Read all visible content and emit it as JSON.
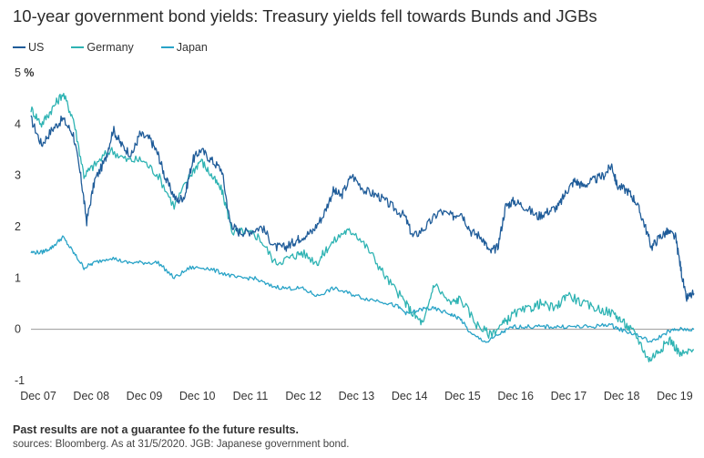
{
  "title": "10-year government bond yields: Treasury yields fell towards Bunds and JGBs",
  "footnote": "Past results are not a guarantee fo the future results.",
  "sources": "sources: Bloomberg. As at 31/5/2020. JGB: Japanese government bond.",
  "colors": {
    "US": "#1f5c99",
    "Germany": "#2eb3b3",
    "Japan": "#29a3c7"
  },
  "chart_data": {
    "type": "line",
    "title": "10-year government bond yields: Treasury yields fell towards Bunds and JGBs",
    "ylabel": "%",
    "y_unit": "%",
    "ylim": [
      -1,
      5
    ],
    "yticks": [
      5,
      4,
      3,
      2,
      1,
      0,
      -1
    ],
    "x_tick_labels": [
      "Dec 07",
      "Dec 08",
      "Dec 09",
      "Dec 10",
      "Dec 11",
      "Dec 12",
      "Dec 13",
      "Dec 14",
      "Dec 15",
      "Dec 16",
      "Dec 17",
      "Dec 18",
      "Dec 19"
    ],
    "xlim": [
      2007.9,
      2020.4
    ],
    "grid": "horizontal-zero-line",
    "legend_position": "top-left",
    "series": [
      {
        "name": "US",
        "color": "#1f5c99",
        "x": [
          2007.9,
          2008.1,
          2008.3,
          2008.5,
          2008.7,
          2008.85,
          2008.95,
          2009.1,
          2009.3,
          2009.45,
          2009.6,
          2009.8,
          2009.95,
          2010.15,
          2010.3,
          2010.45,
          2010.65,
          2010.8,
          2010.95,
          2011.1,
          2011.3,
          2011.5,
          2011.65,
          2011.8,
          2012.0,
          2012.25,
          2012.5,
          2012.7,
          2012.85,
          2013.0,
          2013.2,
          2013.4,
          2013.6,
          2013.75,
          2013.95,
          2014.2,
          2014.45,
          2014.7,
          2014.95,
          2015.1,
          2015.35,
          2015.6,
          2015.85,
          2016.0,
          2016.2,
          2016.4,
          2016.55,
          2016.7,
          2016.85,
          2017.0,
          2017.2,
          2017.45,
          2017.65,
          2017.85,
          2018.0,
          2018.15,
          2018.3,
          2018.5,
          2018.7,
          2018.85,
          2018.95,
          2019.15,
          2019.3,
          2019.45,
          2019.6,
          2019.75,
          2019.9,
          2020.05,
          2020.15,
          2020.25,
          2020.4
        ],
        "values": [
          4.1,
          3.6,
          3.9,
          4.1,
          3.8,
          2.9,
          2.1,
          2.9,
          3.3,
          3.9,
          3.6,
          3.4,
          3.8,
          3.7,
          3.4,
          2.9,
          2.5,
          2.6,
          3.3,
          3.5,
          3.3,
          3.1,
          2.1,
          1.9,
          1.9,
          2.0,
          1.6,
          1.6,
          1.7,
          1.8,
          1.9,
          2.2,
          2.7,
          2.6,
          3.0,
          2.7,
          2.6,
          2.4,
          2.2,
          1.8,
          2.0,
          2.3,
          2.2,
          2.3,
          1.9,
          1.8,
          1.5,
          1.6,
          2.4,
          2.5,
          2.4,
          2.2,
          2.3,
          2.4,
          2.7,
          2.9,
          2.8,
          2.9,
          3.0,
          3.2,
          2.8,
          2.7,
          2.5,
          2.1,
          1.6,
          1.8,
          1.9,
          1.8,
          1.2,
          0.6,
          0.7
        ]
      },
      {
        "name": "Germany",
        "color": "#2eb3b3",
        "x": [
          2007.9,
          2008.1,
          2008.3,
          2008.5,
          2008.7,
          2008.9,
          2009.1,
          2009.4,
          2009.7,
          2010.0,
          2010.3,
          2010.6,
          2010.9,
          2011.1,
          2011.3,
          2011.5,
          2011.7,
          2011.95,
          2012.2,
          2012.5,
          2012.8,
          2013.0,
          2013.3,
          2013.5,
          2013.8,
          2014.0,
          2014.3,
          2014.6,
          2014.9,
          2015.1,
          2015.3,
          2015.5,
          2015.8,
          2016.0,
          2016.3,
          2016.55,
          2016.8,
          2017.0,
          2017.3,
          2017.5,
          2017.8,
          2018.0,
          2018.3,
          2018.6,
          2018.9,
          2019.1,
          2019.3,
          2019.55,
          2019.75,
          2019.95,
          2020.15,
          2020.4
        ],
        "values": [
          4.3,
          4.0,
          4.3,
          4.6,
          4.1,
          3.0,
          3.2,
          3.5,
          3.3,
          3.3,
          3.0,
          2.4,
          3.0,
          3.3,
          3.0,
          2.7,
          1.9,
          1.9,
          1.8,
          1.3,
          1.4,
          1.5,
          1.3,
          1.6,
          1.9,
          1.9,
          1.5,
          1.0,
          0.6,
          0.3,
          0.1,
          0.9,
          0.5,
          0.6,
          0.1,
          -0.1,
          0.1,
          0.3,
          0.4,
          0.5,
          0.4,
          0.7,
          0.5,
          0.4,
          0.3,
          0.1,
          -0.1,
          -0.6,
          -0.4,
          -0.2,
          -0.5,
          -0.4
        ]
      },
      {
        "name": "Japan",
        "color": "#29a3c7",
        "x": [
          2007.9,
          2008.1,
          2008.3,
          2008.5,
          2008.7,
          2008.9,
          2009.1,
          2009.4,
          2009.7,
          2010.0,
          2010.3,
          2010.6,
          2010.9,
          2011.2,
          2011.5,
          2011.8,
          2012.1,
          2012.4,
          2012.7,
          2013.0,
          2013.3,
          2013.6,
          2013.9,
          2014.2,
          2014.5,
          2014.8,
          2015.0,
          2015.3,
          2015.5,
          2015.8,
          2016.0,
          2016.2,
          2016.5,
          2016.8,
          2017.0,
          2017.3,
          2017.6,
          2017.9,
          2018.2,
          2018.5,
          2018.8,
          2019.0,
          2019.3,
          2019.6,
          2019.9,
          2020.1,
          2020.4
        ],
        "values": [
          1.5,
          1.5,
          1.6,
          1.8,
          1.5,
          1.2,
          1.3,
          1.4,
          1.3,
          1.3,
          1.3,
          1.0,
          1.2,
          1.2,
          1.1,
          1.0,
          1.0,
          0.85,
          0.8,
          0.8,
          0.65,
          0.8,
          0.7,
          0.6,
          0.55,
          0.45,
          0.3,
          0.4,
          0.4,
          0.3,
          0.2,
          -0.1,
          -0.25,
          -0.05,
          0.05,
          0.05,
          0.05,
          0.05,
          0.05,
          0.05,
          0.1,
          0.0,
          -0.1,
          -0.25,
          -0.05,
          0.0,
          0.0
        ]
      }
    ]
  }
}
